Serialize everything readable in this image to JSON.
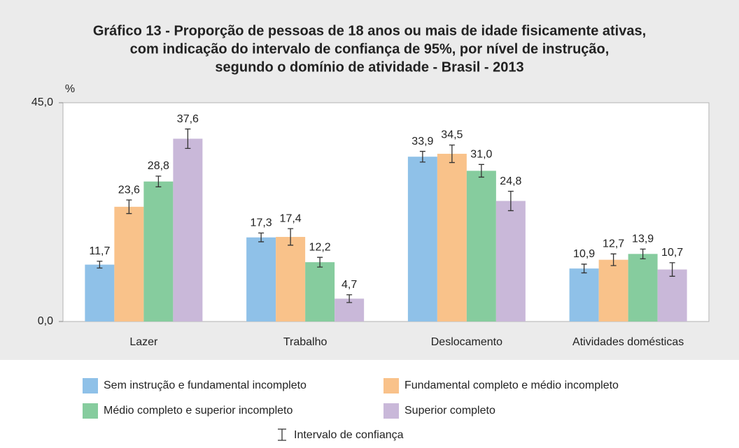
{
  "chart_data": {
    "type": "bar",
    "title": [
      "Gráfico 13 - Proporção de pessoas de 18 anos ou mais de idade fisicamente ativas,",
      "com indicação do intervalo de confiança de 95%, por nível de instrução,",
      "segundo o domínio de atividade - Brasil - 2013"
    ],
    "y_axis_label": "%",
    "categories": [
      "Lazer",
      "Trabalho",
      "Deslocamento",
      "Atividades domésticas"
    ],
    "series": [
      {
        "name": "Sem instrução e fundamental incompleto",
        "color": "#8fc1e8",
        "values": [
          11.7,
          17.3,
          33.9,
          10.9
        ],
        "value_labels": [
          "11,7",
          "17,3",
          "33,9",
          "10,9"
        ],
        "errors": [
          0.7,
          0.9,
          1.1,
          0.9
        ]
      },
      {
        "name": "Fundamental completo e médio incompleto",
        "color": "#f9c28a",
        "values": [
          23.6,
          17.4,
          34.5,
          12.7
        ],
        "value_labels": [
          "23,6",
          "17,4",
          "34,5",
          "12,7"
        ],
        "errors": [
          1.4,
          1.7,
          1.8,
          1.2
        ]
      },
      {
        "name": "Médio completo e superior incompleto",
        "color": "#86cc9e",
        "values": [
          28.8,
          12.2,
          31.0,
          13.9
        ],
        "value_labels": [
          "28,8",
          "12,2",
          "31,0",
          "13,9"
        ],
        "errors": [
          1.1,
          1.0,
          1.3,
          1.0
        ]
      },
      {
        "name": "Superior completo",
        "color": "#c9b8d9",
        "values": [
          37.6,
          4.7,
          24.8,
          10.7
        ],
        "value_labels": [
          "37,6",
          "4,7",
          "24,8",
          "10,7"
        ],
        "errors": [
          2.0,
          0.8,
          2.0,
          1.4
        ]
      }
    ],
    "ylim": [
      0,
      45
    ],
    "yticks": [
      {
        "value": 0,
        "label": "0,0"
      },
      {
        "value": 45,
        "label": "45,0"
      }
    ],
    "error_bar_label": "Intervalo de confiança"
  }
}
